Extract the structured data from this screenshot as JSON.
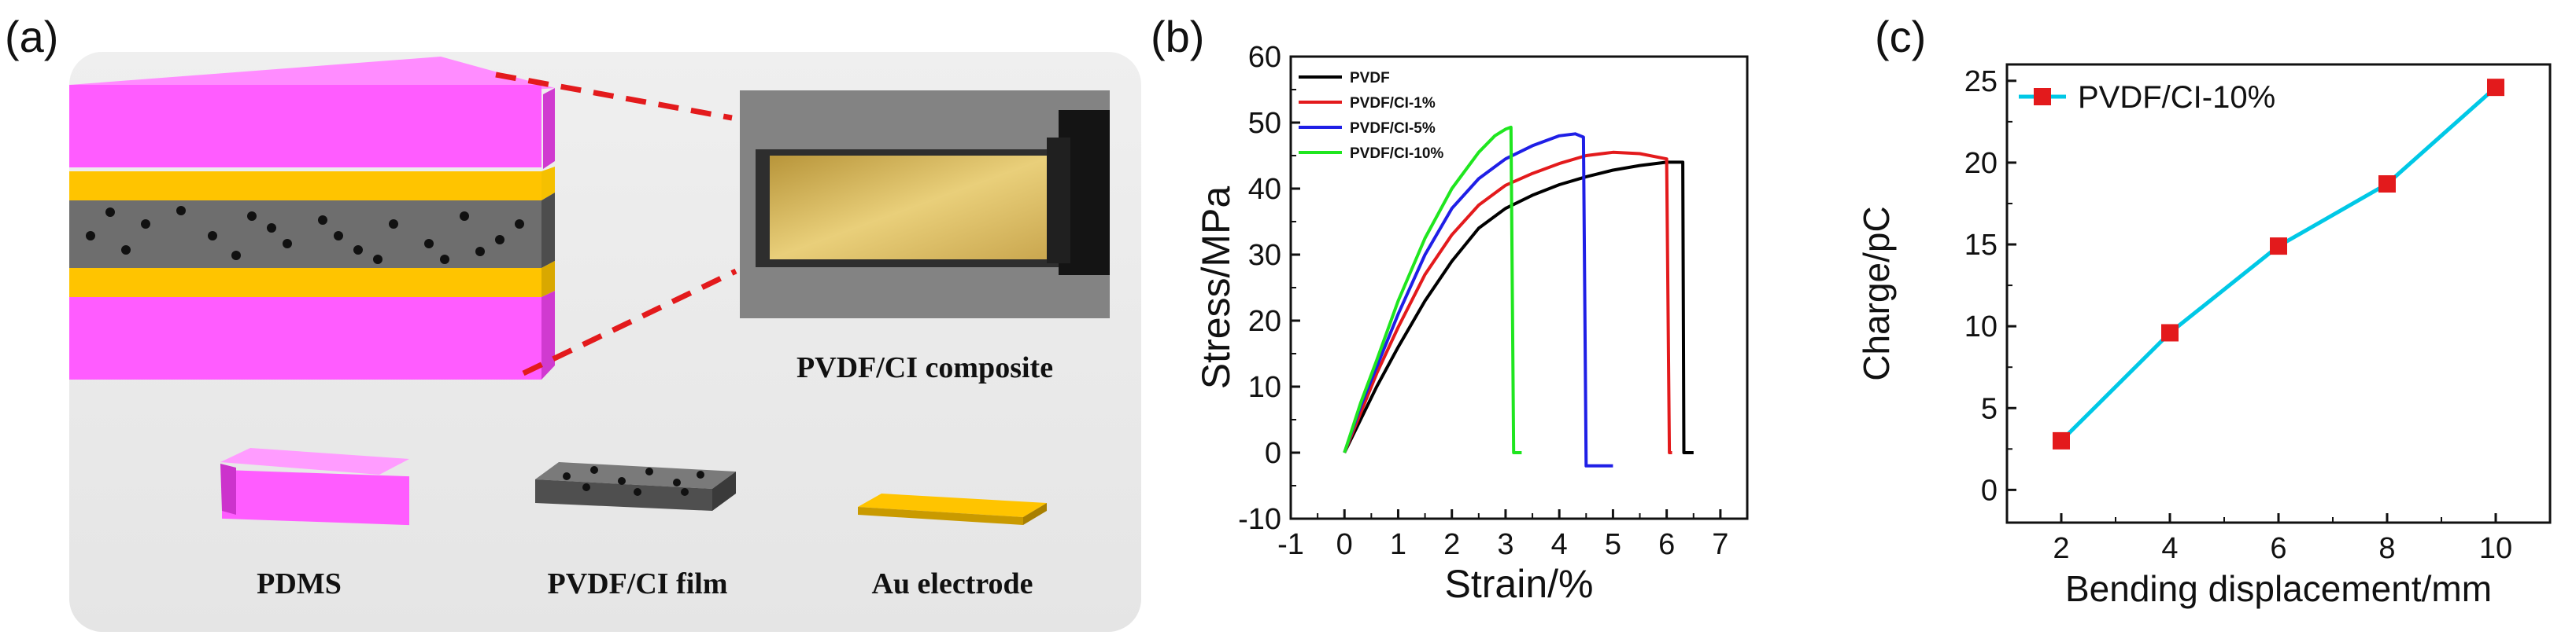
{
  "figure": {
    "panel_a": {
      "label": "(a)",
      "photo_caption": "PVDF/CI composite",
      "legend": [
        {
          "label": "PDMS",
          "color": "#ff5cff"
        },
        {
          "label": "PVDF/CI film",
          "color": "#6e6e6e"
        },
        {
          "label": "Au electrode",
          "color": "#f5c000"
        }
      ]
    },
    "panel_b": {
      "label": "(b)"
    },
    "panel_c": {
      "label": "(c)"
    }
  },
  "chart_data": [
    {
      "type": "line",
      "xlabel": "Strain/%",
      "ylabel": "Stress/MPa",
      "xlim": [
        -1,
        7.5
      ],
      "ylim": [
        -10,
        60
      ],
      "x_ticks": [
        -1,
        0,
        1,
        2,
        3,
        4,
        5,
        6,
        7
      ],
      "y_ticks": [
        -10,
        0,
        10,
        20,
        30,
        40,
        50,
        60
      ],
      "legend_position": "top-left",
      "series": [
        {
          "name": "PVDF",
          "color": "#000000",
          "x": [
            0,
            0.3,
            0.6,
            1.0,
            1.5,
            2.0,
            2.5,
            3.0,
            3.5,
            4.0,
            4.5,
            5.0,
            5.5,
            6.0,
            6.3,
            6.32,
            6.35,
            6.5
          ],
          "y": [
            0,
            5,
            10,
            16,
            23,
            29,
            34,
            37,
            39,
            40.6,
            41.8,
            42.8,
            43.5,
            44,
            44,
            0,
            0,
            0
          ]
        },
        {
          "name": "PVDF/CI-1%",
          "color": "#e31a1c",
          "x": [
            0,
            0.3,
            0.6,
            1.0,
            1.5,
            2.0,
            2.5,
            3.0,
            3.5,
            4.0,
            4.5,
            5.0,
            5.5,
            6.0,
            6.05,
            6.1
          ],
          "y": [
            0,
            6,
            12,
            19,
            27,
            33,
            37.5,
            40.5,
            42.3,
            43.8,
            45,
            45.5,
            45.3,
            44.5,
            0,
            0
          ]
        },
        {
          "name": "PVDF/CI-5%",
          "color": "#1f1fe6",
          "x": [
            0,
            0.3,
            0.6,
            1.0,
            1.5,
            2.0,
            2.5,
            3.0,
            3.5,
            4.0,
            4.3,
            4.45,
            4.5,
            4.6,
            5.0
          ],
          "y": [
            0,
            7,
            13,
            21,
            30,
            37,
            41.5,
            44.5,
            46.5,
            48,
            48.3,
            47.8,
            -2,
            -2,
            -2
          ]
        },
        {
          "name": "PVDF/CI-10%",
          "color": "#1fe61f",
          "x": [
            0,
            0.3,
            0.6,
            1.0,
            1.5,
            2.0,
            2.5,
            2.8,
            3.0,
            3.1,
            3.15,
            3.3
          ],
          "y": [
            0,
            7.5,
            14,
            23,
            32.5,
            40,
            45.5,
            48,
            49,
            49.3,
            0,
            0
          ]
        }
      ]
    },
    {
      "type": "line",
      "xlabel": "Bending displacement/mm",
      "ylabel": "Charge/pC",
      "xlim": [
        1,
        11
      ],
      "ylim": [
        -2,
        26
      ],
      "x_ticks": [
        2,
        4,
        6,
        8,
        10
      ],
      "y_ticks": [
        0,
        5,
        10,
        15,
        20,
        25
      ],
      "legend_position": "top-left",
      "series": [
        {
          "name": "PVDF/CI-10%",
          "color": "#00c8e6",
          "marker_color": "#e31a1c",
          "x": [
            2,
            4,
            6,
            8,
            10
          ],
          "y": [
            3,
            9.6,
            14.9,
            18.7,
            24.6
          ]
        }
      ]
    }
  ]
}
